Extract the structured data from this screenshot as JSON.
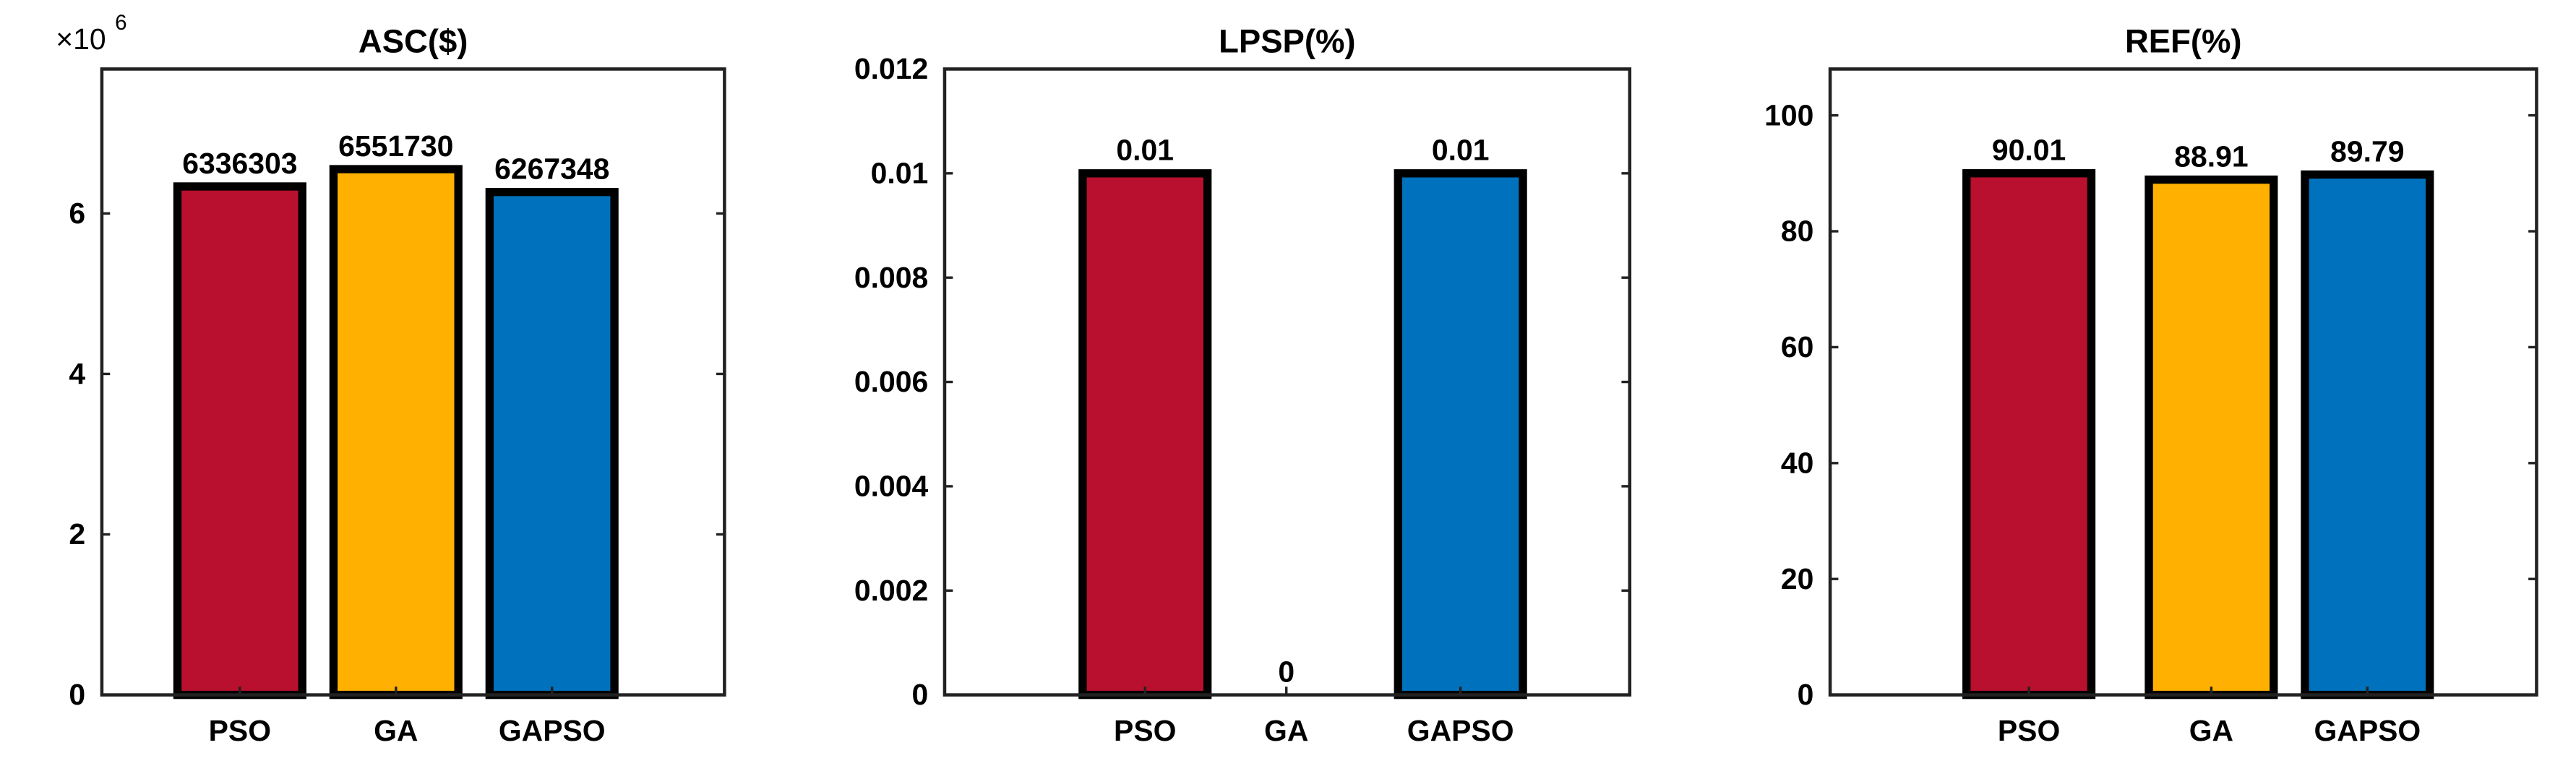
{
  "colors": {
    "PSO": "#b8102e",
    "GA": "#ffb000",
    "GAPSO": "#0072bd",
    "axis": "#222222",
    "text": "#000000"
  },
  "chart_data": [
    {
      "type": "bar",
      "title": "ASC($)",
      "categories": [
        "PSO",
        "GA",
        "GAPSO"
      ],
      "values": [
        6336303,
        6551730,
        6267348
      ],
      "data_labels": [
        "6336303",
        "6551730",
        "6267348"
      ],
      "ylim": [
        0,
        7800000
      ],
      "yticks": [
        0,
        2000000,
        4000000,
        6000000
      ],
      "ytick_labels": [
        "0",
        "2",
        "4",
        "6"
      ],
      "y_multiplier_base": "×10",
      "y_multiplier_exp": "6",
      "xlabel": "",
      "ylabel": "",
      "grid": false
    },
    {
      "type": "bar",
      "title": "LPSP(%)",
      "categories": [
        "PSO",
        "GA",
        "GAPSO"
      ],
      "values": [
        0.01,
        0,
        0.01
      ],
      "data_labels": [
        "0.01",
        "0",
        "0.01"
      ],
      "ylim": [
        0,
        0.012
      ],
      "yticks": [
        0,
        0.002,
        0.004,
        0.006,
        0.008,
        0.01,
        0.012
      ],
      "ytick_labels": [
        "0",
        "0.002",
        "0.004",
        "0.006",
        "0.008",
        "0.01",
        "0.012"
      ],
      "xlabel": "",
      "ylabel": "",
      "grid": false
    },
    {
      "type": "bar",
      "title": "REF(%)",
      "categories": [
        "PSO",
        "GA",
        "GAPSO"
      ],
      "values": [
        90.01,
        88.91,
        89.79
      ],
      "data_labels": [
        "90.01",
        "88.91",
        "89.79"
      ],
      "ylim": [
        0,
        108
      ],
      "yticks": [
        0,
        20,
        40,
        60,
        80,
        100
      ],
      "ytick_labels": [
        "0",
        "20",
        "40",
        "60",
        "80",
        "100"
      ],
      "xlabel": "",
      "ylabel": "",
      "grid": false
    }
  ]
}
